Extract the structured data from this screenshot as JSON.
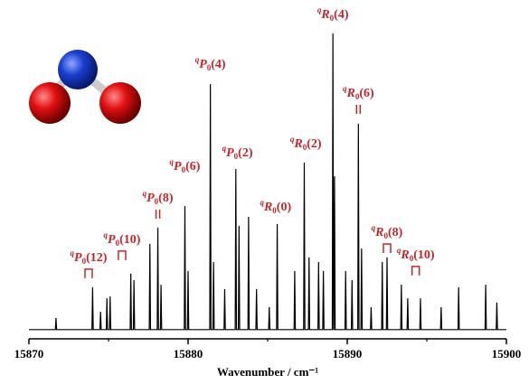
{
  "chart_data": {
    "type": "line",
    "color": "#000000",
    "xlabel": "Wavenumber / cm⁻¹",
    "xlim": [
      15870,
      15900
    ],
    "xticks": [
      15870,
      15880,
      15890,
      15900
    ],
    "minor_xticks": [
      15875,
      15885,
      15895
    ],
    "ylim": [
      0,
      110
    ],
    "x": [
      15870,
      15871.66,
      15871.7,
      15871.74,
      15873.96,
      15874.0,
      15874.04,
      15874.46,
      15874.5,
      15874.54,
      15874.86,
      15874.9,
      15874.94,
      15875.06,
      15875.1,
      15875.14,
      15876.36,
      15876.4,
      15876.44,
      15876.56,
      15876.6,
      15876.64,
      15877.56,
      15877.6,
      15877.64,
      15878.06,
      15878.1,
      15878.14,
      15878.26,
      15878.3,
      15878.34,
      15879.76,
      15879.8,
      15879.84,
      15879.96,
      15880.0,
      15880.04,
      15881.36,
      15881.4,
      15881.44,
      15881.56,
      15881.6,
      15881.64,
      15882.26,
      15882.3,
      15882.34,
      15882.96,
      15883.0,
      15883.04,
      15883.16,
      15883.2,
      15883.24,
      15883.76,
      15883.8,
      15883.84,
      15884.26,
      15884.3,
      15884.34,
      15885.06,
      15885.1,
      15885.14,
      15885.56,
      15885.6,
      15885.64,
      15886.66,
      15886.7,
      15886.74,
      15887.26,
      15887.3,
      15887.34,
      15887.56,
      15887.6,
      15887.64,
      15888.16,
      15888.2,
      15888.24,
      15888.46,
      15888.5,
      15888.54,
      15889.06,
      15889.1,
      15889.14,
      15889.16,
      15889.2,
      15889.24,
      15889.86,
      15889.9,
      15889.94,
      15890.26,
      15890.3,
      15890.34,
      15890.66,
      15890.7,
      15890.74,
      15890.86,
      15890.9,
      15890.94,
      15891.46,
      15891.5,
      15891.54,
      15892.16,
      15892.2,
      15892.24,
      15892.46,
      15892.5,
      15892.54,
      15893.36,
      15893.4,
      15893.44,
      15893.76,
      15893.8,
      15893.84,
      15894.56,
      15894.6,
      15894.64,
      15895.86,
      15895.9,
      15895.94,
      15896.96,
      15897.0,
      15897.04,
      15898.66,
      15898.7,
      15898.74,
      15899.36,
      15899.4,
      15899.44,
      15900
    ],
    "values": [
      3,
      3,
      6.8,
      3,
      3,
      16.8,
      3,
      3,
      8.8,
      3,
      3,
      13.2,
      3,
      3,
      13.8,
      3,
      3,
      21.2,
      3,
      3,
      19.1,
      3,
      3,
      30.9,
      3,
      3,
      36.2,
      3,
      3,
      17.6,
      3,
      3,
      43.2,
      3,
      3,
      22.1,
      3,
      3,
      82.9,
      3,
      3,
      25.0,
      3,
      3,
      16.2,
      3,
      3,
      55.3,
      3,
      3,
      36.8,
      3,
      3,
      39.7,
      3,
      3,
      16.2,
      3,
      3,
      10.3,
      3,
      3,
      37.4,
      3,
      3,
      22.1,
      3,
      3,
      57.4,
      3,
      3,
      26.5,
      3,
      3,
      25.0,
      3,
      3,
      22.1,
      3,
      3,
      99.4,
      3,
      3,
      52.9,
      3,
      3,
      22.1,
      3,
      3,
      19.1,
      3,
      3,
      70.0,
      3,
      3,
      29.4,
      3,
      3,
      10.3,
      3,
      3,
      25.0,
      3,
      3,
      26.5,
      3,
      3,
      17.6,
      3,
      3,
      13.2,
      3,
      3,
      13.2,
      3,
      3,
      10.3,
      3,
      3,
      16.8,
      3,
      3,
      17.6,
      3,
      3,
      11.8,
      3,
      3
    ],
    "annotations": [
      {
        "text": "qP0(12)",
        "x": 15873.75,
        "y": 26.2,
        "marker": "bracket"
      },
      {
        "text": "qP0(10)",
        "x": 15875.85,
        "y": 32.1,
        "marker": "bracket"
      },
      {
        "text": "qP0(8)",
        "x": 15878.1,
        "y": 45.6,
        "marker": "double"
      },
      {
        "text": "qP0(6)",
        "x": 15879.8,
        "y": 55.9
      },
      {
        "text": "qP0(4)",
        "x": 15881.4,
        "y": 89.1
      },
      {
        "text": "qP0(2)",
        "x": 15883.1,
        "y": 60.3
      },
      {
        "text": "qR0(0)",
        "x": 15885.5,
        "y": 42.6
      },
      {
        "text": "qR0(2)",
        "x": 15887.4,
        "y": 63.2
      },
      {
        "text": "qR0(4)",
        "x": 15889.1,
        "y": 105.3
      },
      {
        "text": "qR0(6)",
        "x": 15890.7,
        "y": 79.7,
        "marker": "double"
      },
      {
        "text": "qR0(8)",
        "x": 15892.5,
        "y": 34.4,
        "marker": "bracket"
      },
      {
        "text": "qR0(10)",
        "x": 15894.3,
        "y": 27.1,
        "marker": "bracket"
      }
    ]
  }
}
